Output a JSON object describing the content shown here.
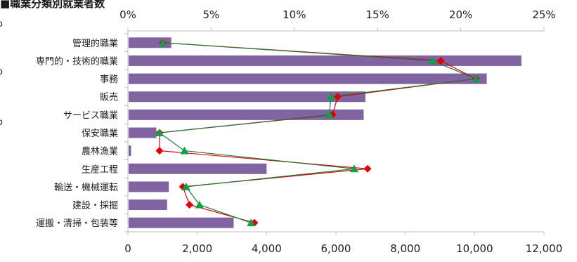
{
  "page": {
    "title": "■職業分類別就業者数",
    "edge_marks": [
      "o",
      "o",
      "o"
    ]
  },
  "chart_data": {
    "type": "bar",
    "orientation": "horizontal",
    "title": "■職業分類別就業者数",
    "categories": [
      "管理的職業",
      "専門的・技術的職業",
      "事務",
      "販売",
      "サービス職業",
      "保安職業",
      "農林漁業",
      "生産工程",
      "輸送・機械運転",
      "建設・採掘",
      "運搬・清掃・包装等"
    ],
    "bar_series": {
      "color": "#8064a2",
      "values": [
        1250,
        11350,
        10350,
        6850,
        6800,
        820,
        90,
        4000,
        1180,
        1130,
        3050
      ]
    },
    "line_series": [
      {
        "marker": "diamond",
        "color": "#e00000",
        "values": [
          2.1,
          18.8,
          20.9,
          12.6,
          12.3,
          1.9,
          1.9,
          14.4,
          3.3,
          3.7,
          7.6
        ]
      },
      {
        "marker": "triangle",
        "color": "#11a04a",
        "line_color": "#1c7a3a",
        "values": [
          2.1,
          18.3,
          20.9,
          12.2,
          12.1,
          1.9,
          3.4,
          13.6,
          3.5,
          4.3,
          7.4
        ]
      }
    ],
    "x_bottom": {
      "min": 0,
      "max": 12000,
      "ticks": [
        0,
        2000,
        4000,
        6000,
        8000,
        10000,
        12000
      ],
      "tick_labels": [
        "0",
        "2,000",
        "4,000",
        "6,000",
        "8,000",
        "10,000",
        "12,000"
      ]
    },
    "x_top": {
      "min": 0,
      "max": 25,
      "ticks": [
        0,
        5,
        10,
        15,
        20,
        25
      ],
      "tick_labels": [
        "0%",
        "5%",
        "10%",
        "15%",
        "20%",
        "25%"
      ]
    },
    "grid": false,
    "legend": "none"
  }
}
